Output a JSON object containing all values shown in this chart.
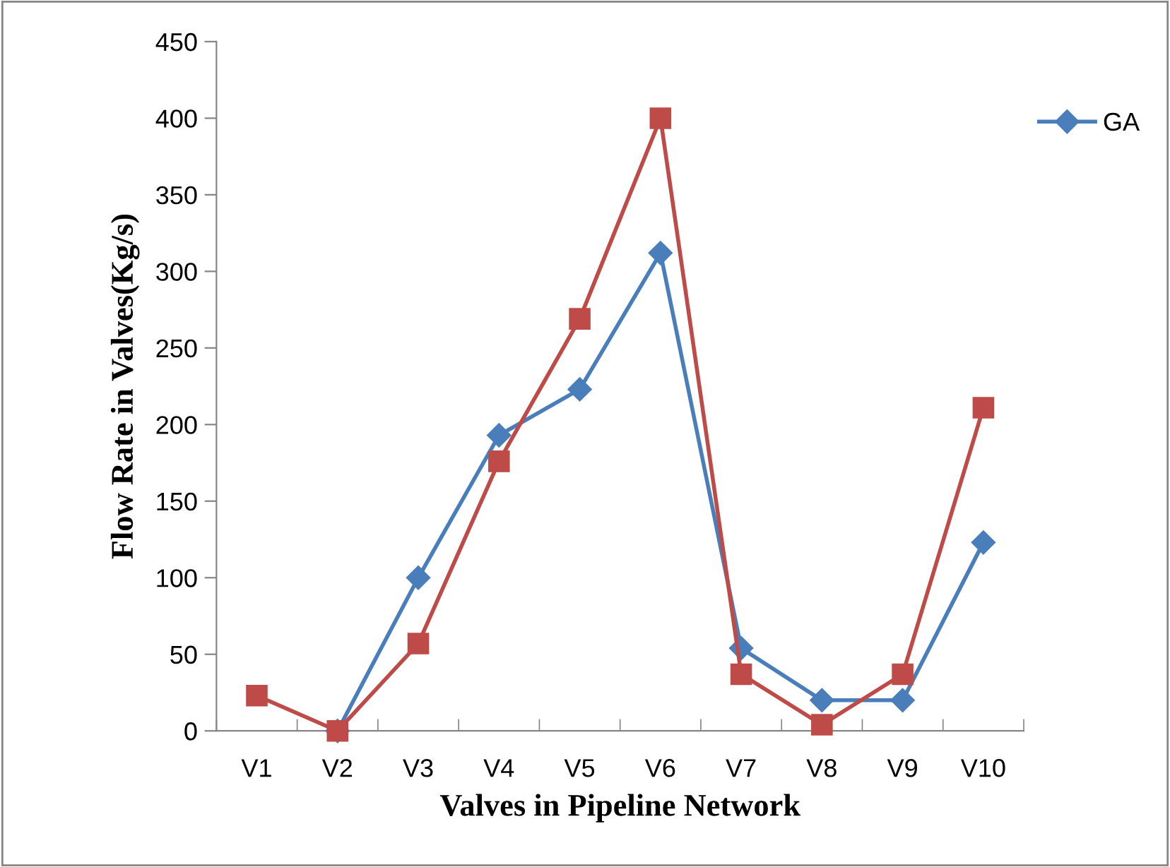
{
  "chart_data": {
    "type": "line",
    "xlabel": "Valves in Pipeline Network",
    "ylabel": "Flow Rate in Valves(Kg/s)",
    "categories": [
      "V1",
      "V2",
      "V3",
      "V4",
      "V5",
      "V6",
      "V7",
      "V8",
      "V9",
      "V10"
    ],
    "series": [
      {
        "name": "GA",
        "color": "#4a7ebb",
        "marker": "diamond",
        "values": [
          null,
          0,
          100,
          193,
          223,
          312,
          54,
          20,
          20,
          123
        ]
      },
      {
        "color": "#be4b48",
        "marker": "square",
        "values": [
          23,
          0,
          57,
          176,
          269,
          400,
          37,
          4,
          37,
          211
        ]
      }
    ],
    "ylim": [
      0,
      450
    ],
    "yticks": [
      0,
      50,
      100,
      150,
      200,
      250,
      300,
      350,
      400,
      450
    ],
    "grid": false,
    "legend": "top right"
  }
}
